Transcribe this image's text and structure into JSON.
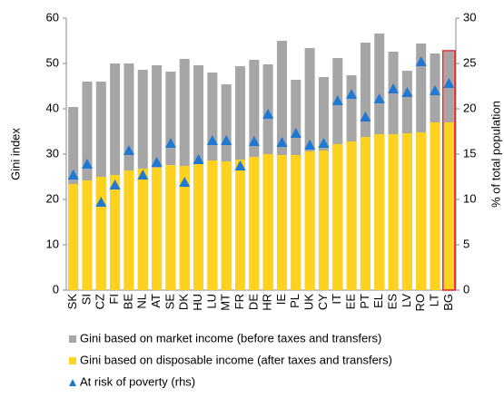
{
  "chart_data": {
    "type": "bar",
    "categories": [
      "SK",
      "SI",
      "CZ",
      "FI",
      "BE",
      "NL",
      "AT",
      "SE",
      "DK",
      "HU",
      "LU",
      "MT",
      "FR",
      "DE",
      "HR",
      "IE",
      "PL",
      "UK",
      "CY",
      "IT",
      "EE",
      "PT",
      "EL",
      "ES",
      "LV",
      "RO",
      "LT",
      "BG"
    ],
    "series": [
      {
        "name": "Gini based on market income (before taxes and transfers)",
        "type": "bar",
        "color": "#a6a6a6",
        "values": [
          40.4,
          46,
          46,
          50,
          50,
          48.6,
          49.6,
          48.2,
          51,
          49.6,
          48,
          45.4,
          49.4,
          50.8,
          49.8,
          55,
          46.4,
          53.4,
          47,
          51.2,
          47.4,
          54.6,
          56.6,
          52.6,
          48.4,
          54.4,
          52.2,
          52.6
        ]
      },
      {
        "name": "Gini based on disposable income (after taxes and transfers)",
        "type": "bar",
        "color": "#ffd21f",
        "values": [
          23.4,
          24.2,
          25,
          25.4,
          26.4,
          26.8,
          27,
          27.6,
          27.4,
          27.8,
          28.6,
          28.4,
          28.8,
          29.4,
          30,
          29.8,
          29.8,
          30.6,
          30.8,
          32.2,
          32.8,
          33.8,
          34.4,
          34.4,
          34.6,
          34.8,
          37,
          37
        ]
      },
      {
        "name": "At risk of poverty (rhs)",
        "type": "scatter",
        "axis": "y2",
        "color": "#1f78d1",
        "values": [
          12.7,
          13.9,
          9.7,
          11.6,
          15.4,
          12.7,
          14.1,
          16.2,
          11.9,
          14.4,
          16.5,
          16.5,
          13.7,
          16.4,
          19.4,
          16.3,
          17.3,
          16,
          16.2,
          20.9,
          21.6,
          19.1,
          21.1,
          22.2,
          21.8,
          25.2,
          22,
          22.8
        ]
      }
    ],
    "highlight": "BG",
    "highlight_color": "#e02020",
    "ylabel": "Gini index",
    "y2label": "% of total population",
    "ylim": [
      0,
      60
    ],
    "yticks": [
      0,
      10,
      20,
      30,
      40,
      50,
      60
    ],
    "y2lim": [
      0,
      30
    ],
    "y2ticks": [
      0,
      5,
      10,
      15,
      20,
      25,
      30
    ]
  }
}
